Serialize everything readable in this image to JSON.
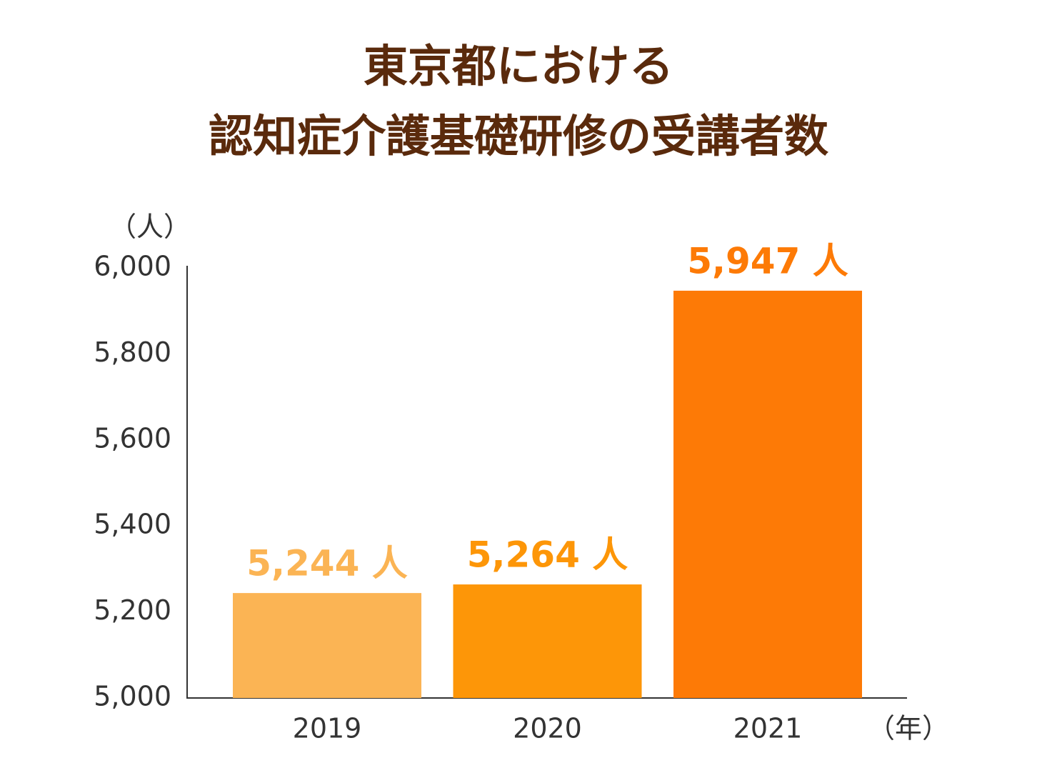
{
  "chart_data": {
    "type": "bar",
    "title": [
      "東京都における",
      "認知症介護基礎研修の受講者数"
    ],
    "y_unit": "（人）",
    "x_unit": "（年）",
    "categories": [
      "2019",
      "2020",
      "2021"
    ],
    "values": [
      5244,
      5264,
      5947
    ],
    "value_labels": [
      "5,244 人",
      "5,264 人",
      "5,947 人"
    ],
    "colors": [
      "#fbb454",
      "#fd9608",
      "#fd7a06"
    ],
    "ylim": [
      5000,
      6000
    ],
    "yticks": [
      {
        "value": 5000,
        "label": "5,000"
      },
      {
        "value": 5200,
        "label": "5,200"
      },
      {
        "value": 5400,
        "label": "5,400"
      },
      {
        "value": 5600,
        "label": "5,600"
      },
      {
        "value": 5800,
        "label": "5,800"
      },
      {
        "value": 6000,
        "label": "6,000"
      }
    ],
    "grid": false
  }
}
